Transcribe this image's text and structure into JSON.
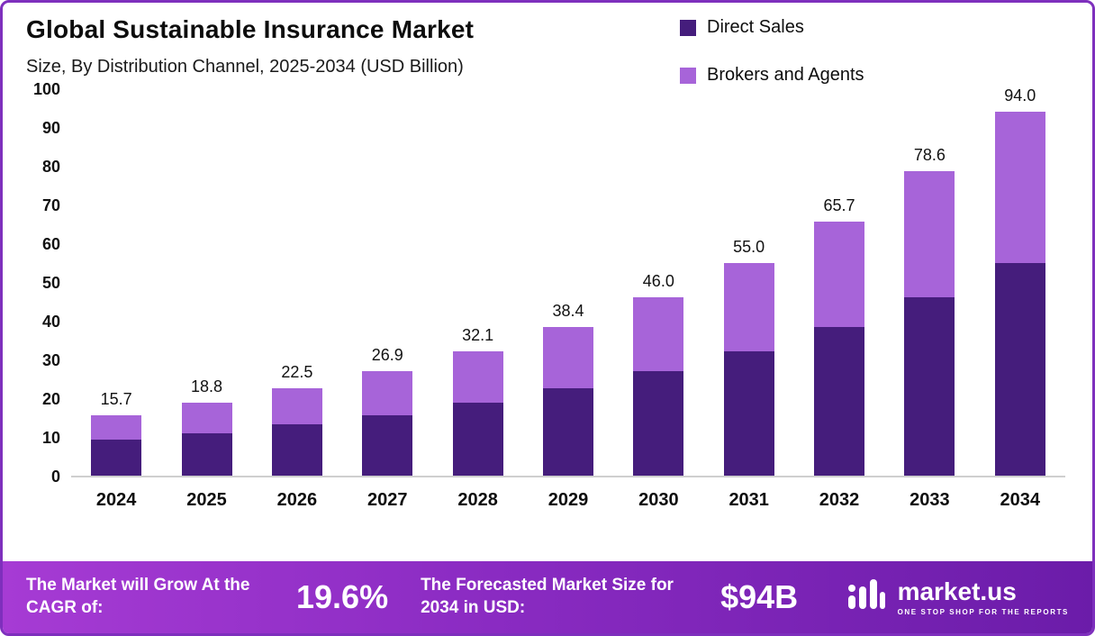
{
  "header": {
    "title": "Global Sustainable Insurance Market",
    "subtitle": "Size, By Distribution Channel, 2025-2034 (USD Billion)"
  },
  "legend": {
    "items": [
      {
        "label": "Direct Sales",
        "color": "#451d7c"
      },
      {
        "label": "Brokers and Agents",
        "color": "#a764d9"
      }
    ]
  },
  "chart_data": {
    "type": "bar",
    "stacked": true,
    "title": "Global Sustainable Insurance Market Size, By Distribution Channel, 2025-2034 (USD Billion)",
    "categories": [
      "2024",
      "2025",
      "2026",
      "2027",
      "2028",
      "2029",
      "2030",
      "2031",
      "2032",
      "2033",
      "2034"
    ],
    "series": [
      {
        "name": "Direct Sales",
        "values": [
          9.2,
          11.0,
          13.2,
          15.7,
          18.8,
          22.5,
          26.9,
          32.2,
          38.4,
          46.0,
          55.0
        ]
      },
      {
        "name": "Brokers and Agents",
        "values": [
          6.5,
          7.8,
          9.3,
          11.2,
          13.3,
          15.9,
          19.1,
          22.8,
          27.3,
          32.6,
          39.0
        ]
      }
    ],
    "totals": [
      15.7,
      18.8,
      22.5,
      26.9,
      32.1,
      38.4,
      46.0,
      55.0,
      65.7,
      78.6,
      94.0
    ],
    "xlabel": "",
    "ylabel": "",
    "ylim": [
      0,
      100
    ],
    "yticks": [
      0,
      10,
      20,
      30,
      40,
      50,
      60,
      70,
      80,
      90,
      100
    ],
    "grid": false,
    "legend_position": "top-right"
  },
  "footer": {
    "cagr_label": "The Market will Grow At the CAGR of:",
    "cagr_value": "19.6%",
    "forecast_label": "The Forecasted Market Size for 2034 in USD:",
    "forecast_value": "$94B",
    "brand": "market.us",
    "brand_tagline": "ONE STOP SHOP FOR THE REPORTS"
  }
}
